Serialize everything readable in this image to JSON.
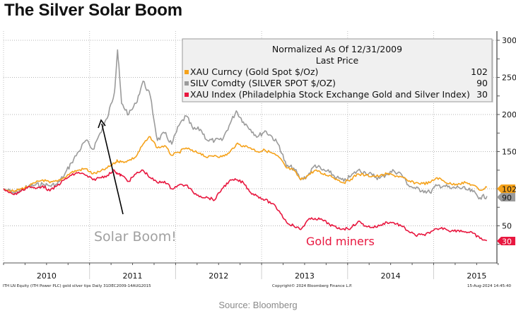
{
  "page": {
    "title": "The Silver Solar Boom",
    "source": "Source: Bloomberg"
  },
  "chart_data": {
    "type": "line",
    "title": "The Silver Solar Boom",
    "legend_title_line1": "Normalized As Of 12/31/2009",
    "legend_title_line2": "Last Price",
    "legend_position": "top-right",
    "xlabel": "",
    "ylabel": "",
    "ylim": [
      0,
      305
    ],
    "yticks": [
      50,
      150,
      200,
      250,
      300
    ],
    "xlim": [
      "2010-01-01",
      "2015-12-31"
    ],
    "xticks": [
      "2010",
      "2011",
      "2012",
      "2013",
      "2014",
      "2015"
    ],
    "grid": true,
    "x": [
      "2009-12-31",
      "2010-02",
      "2010-03",
      "2010-04",
      "2010-05",
      "2010-06",
      "2010-07",
      "2010-08",
      "2010-09",
      "2010-10",
      "2010-11",
      "2010-12",
      "2011-01",
      "2011-02",
      "2011-03",
      "2011-04",
      "2011-04-28",
      "2011-05",
      "2011-06",
      "2011-07",
      "2011-08",
      "2011-09",
      "2011-10",
      "2011-11",
      "2011-12",
      "2012-01",
      "2012-02",
      "2012-03",
      "2012-04",
      "2012-05",
      "2012-06",
      "2012-07",
      "2012-08",
      "2012-09",
      "2012-10",
      "2012-11",
      "2012-12",
      "2013-01",
      "2013-02",
      "2013-03",
      "2013-04",
      "2013-05",
      "2013-06",
      "2013-07",
      "2013-08",
      "2013-09",
      "2013-10",
      "2013-11",
      "2013-12",
      "2014-01",
      "2014-02",
      "2014-03",
      "2014-04",
      "2014-05",
      "2014-06",
      "2014-07",
      "2014-08",
      "2014-09",
      "2014-10",
      "2014-11",
      "2014-12",
      "2015-01",
      "2015-02",
      "2015-03",
      "2015-04",
      "2015-05",
      "2015-06",
      "2015-07",
      "2015-08-14"
    ],
    "series": [
      {
        "name": "XAU Curncy (Gold Spot  $/Oz)",
        "color": "#f5a21b",
        "last": "102",
        "values": [
          100,
          96,
          100,
          103,
          108,
          112,
          108,
          110,
          115,
          122,
          125,
          127,
          120,
          123,
          128,
          134,
          138,
          136,
          138,
          143,
          160,
          170,
          155,
          158,
          145,
          149,
          155,
          150,
          148,
          142,
          145,
          143,
          148,
          160,
          158,
          155,
          150,
          152,
          148,
          142,
          128,
          125,
          112,
          118,
          125,
          120,
          118,
          113,
          108,
          113,
          120,
          118,
          117,
          117,
          120,
          118,
          116,
          110,
          108,
          107,
          108,
          115,
          110,
          106,
          107,
          108,
          105,
          98,
          102
        ]
      },
      {
        "name": "SILV Comdty (SILVER SPOT $/OZ)",
        "color": "#9b9b9b",
        "last": "90",
        "values": [
          100,
          94,
          98,
          103,
          105,
          106,
          104,
          106,
          118,
          135,
          150,
          165,
          153,
          175,
          195,
          230,
          287,
          215,
          200,
          215,
          245,
          225,
          165,
          175,
          160,
          185,
          198,
          180,
          180,
          165,
          165,
          165,
          185,
          205,
          190,
          180,
          170,
          178,
          170,
          158,
          130,
          128,
          112,
          118,
          132,
          125,
          122,
          115,
          110,
          117,
          125,
          122,
          118,
          114,
          120,
          124,
          120,
          105,
          100,
          98,
          95,
          104,
          104,
          100,
          102,
          99,
          96,
          88,
          90
        ]
      },
      {
        "name": "XAU Index (Philadelphia Stock Exchange Gold and Silver Index)",
        "color": "#e8173f",
        "last": "30",
        "values": [
          100,
          92,
          97,
          103,
          100,
          104,
          97,
          104,
          112,
          118,
          122,
          118,
          112,
          115,
          118,
          125,
          120,
          118,
          110,
          120,
          125,
          115,
          108,
          110,
          100,
          105,
          105,
          95,
          90,
          88,
          85,
          100,
          110,
          112,
          108,
          95,
          90,
          85,
          80,
          70,
          55,
          50,
          45,
          58,
          60,
          58,
          52,
          47,
          46,
          47,
          56,
          50,
          48,
          50,
          55,
          54,
          50,
          43,
          37,
          38,
          40,
          46,
          47,
          43,
          44,
          42,
          40,
          33,
          30
        ]
      }
    ],
    "annotations": [
      {
        "text": "Solar Boom!",
        "color": "#a0a0a0",
        "arrow_to_date": "2010-12",
        "arrow_to_value": 190
      },
      {
        "text": "Gold miners",
        "color": "#e8173f"
      }
    ],
    "footer_left": "ITH LN Equity (ITH Power PLC) gold silver tips  Daily 31DEC2009-14AUG2015",
    "footer_center": "Copyright© 2024 Bloomberg Finance L.P.",
    "footer_right": "15-Aug-2024 14:45:40"
  }
}
